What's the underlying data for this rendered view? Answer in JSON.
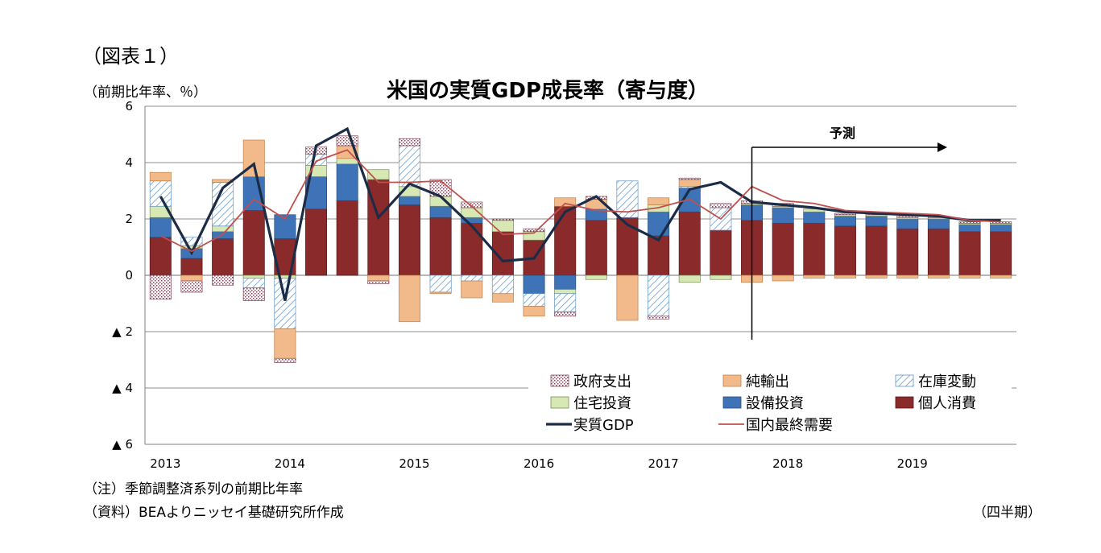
{
  "labels": {
    "figure": "（図表１）",
    "unit": "（前期比年率、％）",
    "note": "（注）季節調整済系列の前期比年率",
    "source": "（資料）BEAよりニッセイ基礎研究所作成",
    "period": "（四半期）"
  },
  "chart_data": {
    "type": "bar",
    "stacked": true,
    "title": "米国の実質GDP成長率（寄与度）",
    "ylabel": "（前期比年率、％）",
    "xlabel": "（四半期）",
    "ylim": [
      -6,
      6
    ],
    "y_ticks": [
      {
        "value": 6,
        "label": "6"
      },
      {
        "value": 4,
        "label": "4"
      },
      {
        "value": 2,
        "label": "2"
      },
      {
        "value": 0,
        "label": "0"
      },
      {
        "value": -2,
        "label": "▲ 2"
      },
      {
        "value": -4,
        "label": "▲ 4"
      },
      {
        "value": -6,
        "label": "▲ 6"
      }
    ],
    "x_year_labels": [
      {
        "label": "2013",
        "index": 0
      },
      {
        "label": "2014",
        "index": 4
      },
      {
        "label": "2015",
        "index": 8
      },
      {
        "label": "2016",
        "index": 12
      },
      {
        "label": "2017",
        "index": 16
      },
      {
        "label": "2018",
        "index": 20
      },
      {
        "label": "2019",
        "index": 24
      }
    ],
    "categories": [
      "2013Q1",
      "2013Q2",
      "2013Q3",
      "2013Q4",
      "2014Q1",
      "2014Q2",
      "2014Q3",
      "2014Q4",
      "2015Q1",
      "2015Q2",
      "2015Q3",
      "2015Q4",
      "2016Q1",
      "2016Q2",
      "2016Q3",
      "2016Q4",
      "2017Q1",
      "2017Q2",
      "2017Q3",
      "2017Q4",
      "2018Q1",
      "2018Q2",
      "2018Q3",
      "2018Q4",
      "2019Q1",
      "2019Q2",
      "2019Q3",
      "2019Q4"
    ],
    "series": [
      {
        "name": "個人消費",
        "key": "consumption",
        "kind": "bar",
        "color": "#8b2a2a",
        "values": [
          1.35,
          0.6,
          1.3,
          2.3,
          1.3,
          2.35,
          2.65,
          3.4,
          2.5,
          2.05,
          1.85,
          1.55,
          1.25,
          2.45,
          1.95,
          2.05,
          1.4,
          2.25,
          1.6,
          1.95,
          1.85,
          1.85,
          1.75,
          1.75,
          1.65,
          1.65,
          1.55,
          1.55
        ]
      },
      {
        "name": "設備投資",
        "key": "investment",
        "kind": "bar",
        "color": "#3e73b8",
        "values": [
          0.7,
          0.35,
          0.25,
          1.2,
          0.85,
          1.15,
          1.3,
          0.0,
          0.3,
          0.4,
          0.2,
          0.0,
          -0.65,
          -0.5,
          0.4,
          0.0,
          0.85,
          0.85,
          0.0,
          0.55,
          0.55,
          0.4,
          0.35,
          0.35,
          0.35,
          0.35,
          0.25,
          0.25
        ]
      },
      {
        "name": "住宅投資",
        "key": "housing",
        "kind": "bar",
        "color": "#d8e8b4",
        "values": [
          0.4,
          0.1,
          0.2,
          -0.1,
          -0.1,
          0.4,
          0.2,
          0.35,
          0.35,
          0.35,
          0.35,
          0.4,
          0.3,
          -0.15,
          -0.15,
          0.0,
          0.25,
          -0.25,
          -0.15,
          0.05,
          0.05,
          0.1,
          0.05,
          0.05,
          0.05,
          0.05,
          0.05,
          0.05
        ]
      },
      {
        "name": "在庫変動",
        "key": "inventory",
        "kind": "bar",
        "color": "#a9c9e4",
        "values": [
          0.9,
          0.3,
          1.55,
          -0.35,
          -1.8,
          0.4,
          0.0,
          0.0,
          1.45,
          -0.6,
          -0.2,
          -0.65,
          -0.45,
          -0.65,
          0.0,
          1.3,
          -1.45,
          0.05,
          0.8,
          0.0,
          0.0,
          0.0,
          0.0,
          0.0,
          0.0,
          0.0,
          0.0,
          0.0
        ]
      },
      {
        "name": "純輸出",
        "key": "netexports",
        "kind": "bar",
        "color": "#f2b98a",
        "values": [
          0.3,
          -0.2,
          0.1,
          1.3,
          -1.05,
          0.0,
          0.45,
          -0.2,
          -1.65,
          -0.05,
          -0.6,
          -0.3,
          -0.35,
          0.3,
          0.35,
          -1.6,
          0.25,
          0.25,
          0.0,
          -0.25,
          -0.2,
          -0.1,
          -0.1,
          -0.1,
          -0.1,
          -0.1,
          -0.1,
          -0.1
        ]
      },
      {
        "name": "政府支出",
        "key": "government",
        "kind": "bar",
        "color": "#ead1da",
        "values": [
          -0.85,
          -0.4,
          -0.35,
          -0.45,
          -0.15,
          0.25,
          0.35,
          -0.1,
          0.25,
          0.6,
          0.2,
          0.05,
          0.1,
          -0.15,
          0.1,
          0.0,
          -0.1,
          0.05,
          0.15,
          0.1,
          0.1,
          0.0,
          0.05,
          0.05,
          0.05,
          0.05,
          0.05,
          0.05
        ]
      },
      {
        "name": "実質GDP",
        "key": "gdp",
        "kind": "line",
        "color": "#1c2c46",
        "values": [
          2.8,
          0.8,
          3.1,
          3.95,
          -0.9,
          4.6,
          5.2,
          2.05,
          3.25,
          2.8,
          1.75,
          0.5,
          0.6,
          2.25,
          2.8,
          1.8,
          1.25,
          3.05,
          3.3,
          2.6,
          2.5,
          2.4,
          2.25,
          2.2,
          2.15,
          2.1,
          1.95,
          1.95
        ]
      },
      {
        "name": "国内最終需要",
        "key": "domestic",
        "kind": "line",
        "color": "#c0504d",
        "values": [
          1.4,
          0.85,
          1.45,
          2.7,
          2.0,
          4.05,
          4.45,
          3.3,
          3.3,
          3.35,
          2.45,
          1.45,
          1.5,
          2.55,
          2.3,
          2.25,
          2.4,
          2.7,
          2.0,
          3.15,
          2.65,
          2.55,
          2.3,
          2.25,
          2.2,
          2.15,
          1.95,
          1.9
        ]
      }
    ],
    "forecast": {
      "label": "予測",
      "start_index": 19.5
    },
    "legend": {
      "position": "lower-right"
    }
  }
}
